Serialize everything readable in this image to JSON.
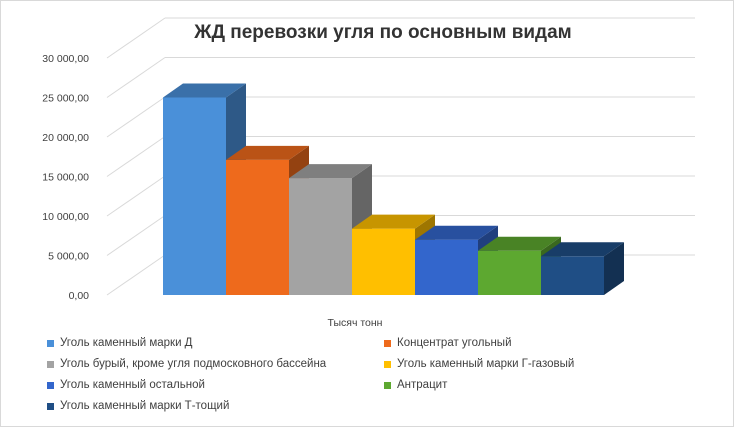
{
  "chart_data": {
    "type": "bar",
    "subtype": "3d-clustered-column",
    "title": "ЖД перевозки угля по основным видам",
    "xlabel": "Тысяч тонн",
    "ylabel": "",
    "ylim": [
      0,
      30000
    ],
    "yticks": [
      "0,00",
      "5 000,00",
      "10 000,00",
      "15 000,00",
      "20 000,00",
      "25 000,00",
      "30 000,00"
    ],
    "ytick_values": [
      0,
      5000,
      10000,
      15000,
      20000,
      25000,
      30000
    ],
    "grid": true,
    "legend_position": "bottom",
    "categories": [
      "Тысяч тонн"
    ],
    "series": [
      {
        "name": "Уголь каменный марки Д",
        "values": [
          25000
        ],
        "color": "#4a90d9"
      },
      {
        "name": "Концентрат угольный",
        "values": [
          17100
        ],
        "color": "#ee6a1c"
      },
      {
        "name": "Уголь бурый, кроме угля подмосковного бассейна",
        "values": [
          14800
        ],
        "color": "#a3a3a3"
      },
      {
        "name": "Уголь каменный марки Г-газовый",
        "values": [
          8400
        ],
        "color": "#ffbf00"
      },
      {
        "name": "Уголь каменный остальной",
        "values": [
          7000
        ],
        "color": "#3366cc"
      },
      {
        "name": "Антрацит",
        "values": [
          5600
        ],
        "color": "#5da830"
      },
      {
        "name": "Уголь каменный марки Т-тощий",
        "values": [
          4900
        ],
        "color": "#1f4e85"
      }
    ]
  }
}
